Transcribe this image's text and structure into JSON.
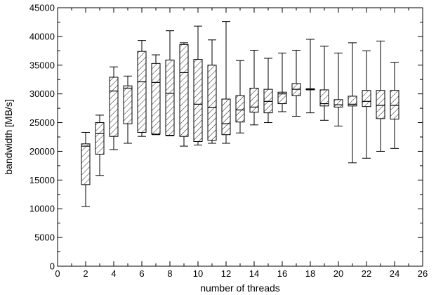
{
  "chart_data": {
    "type": "box",
    "xlabel": "number of threads",
    "ylabel": "bandwidth [MB/s]",
    "xlim": [
      0,
      26
    ],
    "ylim": [
      0,
      45000
    ],
    "xticks": [
      0,
      2,
      4,
      6,
      8,
      10,
      12,
      14,
      16,
      18,
      20,
      22,
      24,
      26
    ],
    "yticks": [
      0,
      5000,
      10000,
      15000,
      20000,
      25000,
      30000,
      35000,
      40000,
      45000
    ],
    "grid": false,
    "boxes": [
      {
        "x": 2,
        "min": 10400,
        "q1": 14200,
        "median": 20900,
        "q3": 21300,
        "max": 23300
      },
      {
        "x": 3,
        "min": 15800,
        "q1": 19500,
        "median": 23100,
        "q3": 25000,
        "max": 26300
      },
      {
        "x": 4,
        "min": 20300,
        "q1": 22600,
        "median": 30500,
        "q3": 32900,
        "max": 34700
      },
      {
        "x": 5,
        "min": 21400,
        "q1": 24800,
        "median": 31000,
        "q3": 31400,
        "max": 33100
      },
      {
        "x": 6,
        "min": 22600,
        "q1": 23300,
        "median": 32100,
        "q3": 37400,
        "max": 39300
      },
      {
        "x": 7,
        "min": 22900,
        "q1": 23000,
        "median": 32000,
        "q3": 35300,
        "max": 36800
      },
      {
        "x": 8,
        "min": 22700,
        "q1": 22800,
        "median": 30100,
        "q3": 35900,
        "max": 41000
      },
      {
        "x": 9,
        "min": 20900,
        "q1": 22600,
        "median": 33700,
        "q3": 38600,
        "max": 38900
      },
      {
        "x": 10,
        "min": 21100,
        "q1": 21700,
        "median": 28200,
        "q3": 36000,
        "max": 41800
      },
      {
        "x": 11,
        "min": 21400,
        "q1": 21900,
        "median": 27600,
        "q3": 35000,
        "max": 39400
      },
      {
        "x": 12,
        "min": 21400,
        "q1": 22900,
        "median": 24800,
        "q3": 29100,
        "max": 42600
      },
      {
        "x": 13,
        "min": 23200,
        "q1": 25100,
        "median": 27200,
        "q3": 29700,
        "max": 35800
      },
      {
        "x": 14,
        "min": 24600,
        "q1": 26800,
        "median": 27700,
        "q3": 31000,
        "max": 37600
      },
      {
        "x": 15,
        "min": 25000,
        "q1": 26700,
        "median": 28700,
        "q3": 30800,
        "max": 36200
      },
      {
        "x": 16,
        "min": 26900,
        "q1": 28300,
        "median": 30000,
        "q3": 30300,
        "max": 37100
      },
      {
        "x": 17,
        "min": 26100,
        "q1": 29700,
        "median": 30800,
        "q3": 31800,
        "max": 37600
      },
      {
        "x": 18,
        "min": 26700,
        "q1": 30700,
        "median": 30800,
        "q3": 30900,
        "max": 39500
      },
      {
        "x": 19,
        "min": 25400,
        "q1": 27900,
        "median": 28300,
        "q3": 30700,
        "max": 38300
      },
      {
        "x": 20,
        "min": 24400,
        "q1": 27700,
        "median": 28100,
        "q3": 29000,
        "max": 37100
      },
      {
        "x": 21,
        "min": 18000,
        "q1": 27900,
        "median": 28200,
        "q3": 29600,
        "max": 38900
      },
      {
        "x": 22,
        "min": 18800,
        "q1": 27800,
        "median": 28700,
        "q3": 30600,
        "max": 37500
      },
      {
        "x": 23,
        "min": 20000,
        "q1": 25700,
        "median": 28000,
        "q3": 30600,
        "max": 39200
      },
      {
        "x": 24,
        "min": 20500,
        "q1": 25600,
        "median": 28000,
        "q3": 30600,
        "max": 35500
      }
    ]
  }
}
